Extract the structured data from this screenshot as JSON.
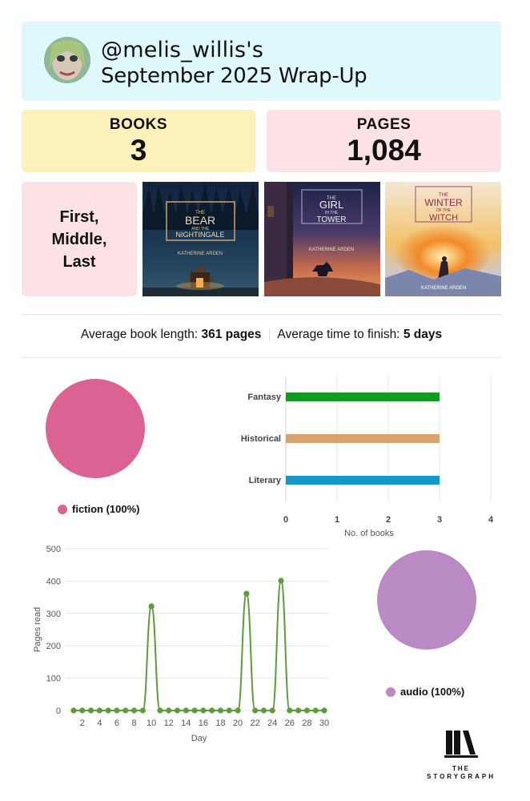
{
  "header": {
    "handle": "@melis_willis's",
    "title": "September 2025 Wrap-Up"
  },
  "stats": {
    "books_label": "BOOKS",
    "books_value": "3",
    "pages_label": "PAGES",
    "pages_value": "1,084"
  },
  "highlight": {
    "label": "First, Middle, Last"
  },
  "covers": [
    {
      "title_top": "THE",
      "title_main": "BEAR",
      "title_sub": "AND THE",
      "title_end": "NIGHTINGALE",
      "author": "KATHERINE ARDEN"
    },
    {
      "title_top": "THE",
      "title_main": "GIRL",
      "title_sub": "IN THE",
      "title_end": "TOWER",
      "author": "KATHERINE ARDEN"
    },
    {
      "title_top": "THE",
      "title_main": "WINTER",
      "title_sub": "OF THE",
      "title_end": "WITCH",
      "author": "KATHERINE ARDEN"
    }
  ],
  "averages": {
    "length_label": "Average book length:",
    "length_value": "361 pages",
    "finish_label": "Average time to finish:",
    "finish_value": "5 days"
  },
  "colors": {
    "fiction": "#dd6294",
    "audio": "#b98ac4",
    "line": "#5f9a3c"
  },
  "chart_data": [
    {
      "type": "pie",
      "slices": [
        {
          "label": "fiction",
          "value": 100
        }
      ],
      "legend": [
        "fiction (100%)"
      ],
      "legend_position": "bottom"
    },
    {
      "type": "bar",
      "orientation": "horizontal",
      "categories": [
        "Fantasy",
        "Historical",
        "Literary"
      ],
      "values": [
        3,
        3,
        3
      ],
      "colors": [
        "#149a22",
        "#d9a170",
        "#1598c7"
      ],
      "xlabel": "No. of books",
      "xlim": [
        0,
        4
      ],
      "xticks": [
        "0",
        "1",
        "2",
        "3",
        "4"
      ],
      "grid": true
    },
    {
      "type": "line",
      "x": [
        1,
        2,
        3,
        4,
        5,
        6,
        7,
        8,
        9,
        10,
        11,
        12,
        13,
        14,
        15,
        16,
        17,
        18,
        19,
        20,
        21,
        22,
        23,
        24,
        25,
        26,
        27,
        28,
        29,
        30
      ],
      "values": [
        0,
        0,
        0,
        0,
        0,
        0,
        0,
        0,
        0,
        322,
        0,
        0,
        0,
        0,
        0,
        0,
        0,
        0,
        0,
        0,
        361,
        0,
        0,
        0,
        401,
        0,
        0,
        0,
        0,
        0
      ],
      "xlabel": "Day",
      "ylabel": "Pages read",
      "ylim": [
        0,
        500
      ],
      "yticks": [
        "0",
        "100",
        "200",
        "300",
        "400",
        "500"
      ],
      "xticks": [
        "2",
        "4",
        "6",
        "8",
        "10",
        "12",
        "14",
        "16",
        "18",
        "20",
        "22",
        "24",
        "26",
        "28",
        "30"
      ],
      "grid": true
    },
    {
      "type": "pie",
      "slices": [
        {
          "label": "audio",
          "value": 100
        }
      ],
      "legend": [
        "audio (100%)"
      ],
      "legend_position": "bottom"
    }
  ],
  "logo": {
    "line1": "THE",
    "line2": "STORYGRAPH"
  }
}
